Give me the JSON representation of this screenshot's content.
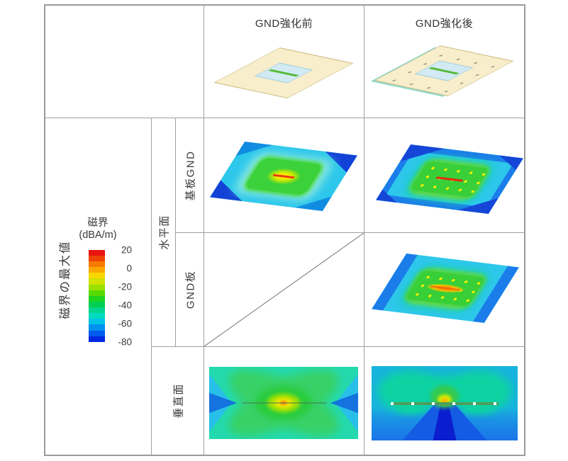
{
  "header": {
    "before": "GND強化前",
    "after": "GND強化後"
  },
  "axis": {
    "title": "磁界の最大値"
  },
  "rows": {
    "horizontal_plane": "水平面",
    "board_gnd": "基板GND",
    "gnd_plate": "GND板",
    "vertical_plane": "垂直面"
  },
  "legend": {
    "title": "磁界",
    "unit": "(dBA/m)",
    "ticks": [
      "20",
      "0",
      "-20",
      "-40",
      "-60",
      "-80"
    ],
    "colors": [
      "#e81410",
      "#f04205",
      "#f67a00",
      "#fba800",
      "#f8d800",
      "#cfe400",
      "#9be000",
      "#58da00",
      "#1ed41e",
      "#00d052",
      "#00d68e",
      "#00dac0",
      "#00c2e4",
      "#0092ee",
      "#005cf0",
      "#0028e0"
    ]
  }
}
